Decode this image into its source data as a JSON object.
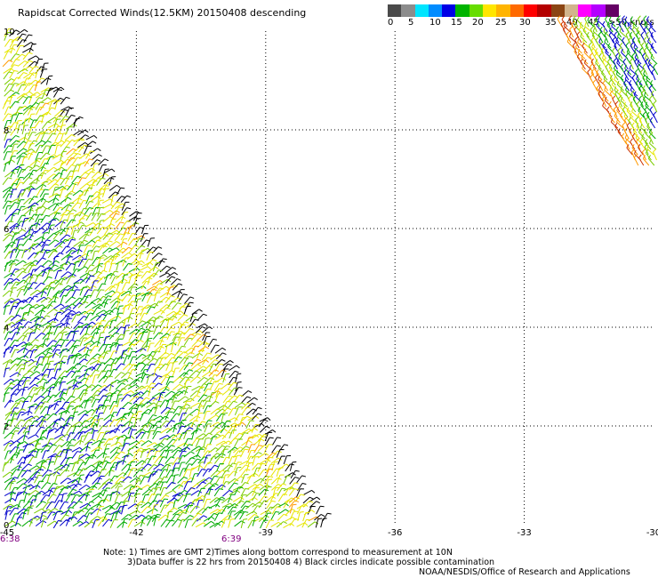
{
  "header": {
    "title": "Rapidscat Corrected Winds(12.5KM) 20150408 descending"
  },
  "legend": {
    "colors": [
      "#4a4a4a",
      "#8c8c8c",
      "#00e5ff",
      "#008cff",
      "#0000e6",
      "#00b400",
      "#66dd00",
      "#ffe600",
      "#ffb400",
      "#ff6a00",
      "#ff0000",
      "#b40000",
      "#8b4513",
      "#d2b48c",
      "#ff00ff",
      "#b400ff",
      "#640064"
    ],
    "labels": [
      "0",
      "5",
      "10",
      "15",
      "20",
      "25",
      "30",
      "35",
      "40",
      "45",
      ">50 knots"
    ]
  },
  "axes": {
    "x_labels": [
      "-45",
      "-42",
      "-39",
      "-36",
      "-33",
      "-30"
    ],
    "y_labels": [
      "0",
      "2",
      "4",
      "6",
      "8",
      "10"
    ]
  },
  "times": {
    "left": "6:38",
    "right": "6:39"
  },
  "notes": {
    "line1": "Note: 1) Times are GMT 2)Times along bottom correspond to measurement at 10N",
    "line2": "3)Data buffer is 22 hrs from 20150408 4) Black circles indicate possible contamination",
    "credit": "NOAA/NESDIS/Office of Research and Applications"
  },
  "wind_colors": {
    "green": "#00aa00",
    "lightgreen": "#7ccd00",
    "blue": "#0000cc",
    "yellow": "#e6e600",
    "orange": "#ff9900",
    "red": "#cc3300",
    "black": "#000000"
  }
}
